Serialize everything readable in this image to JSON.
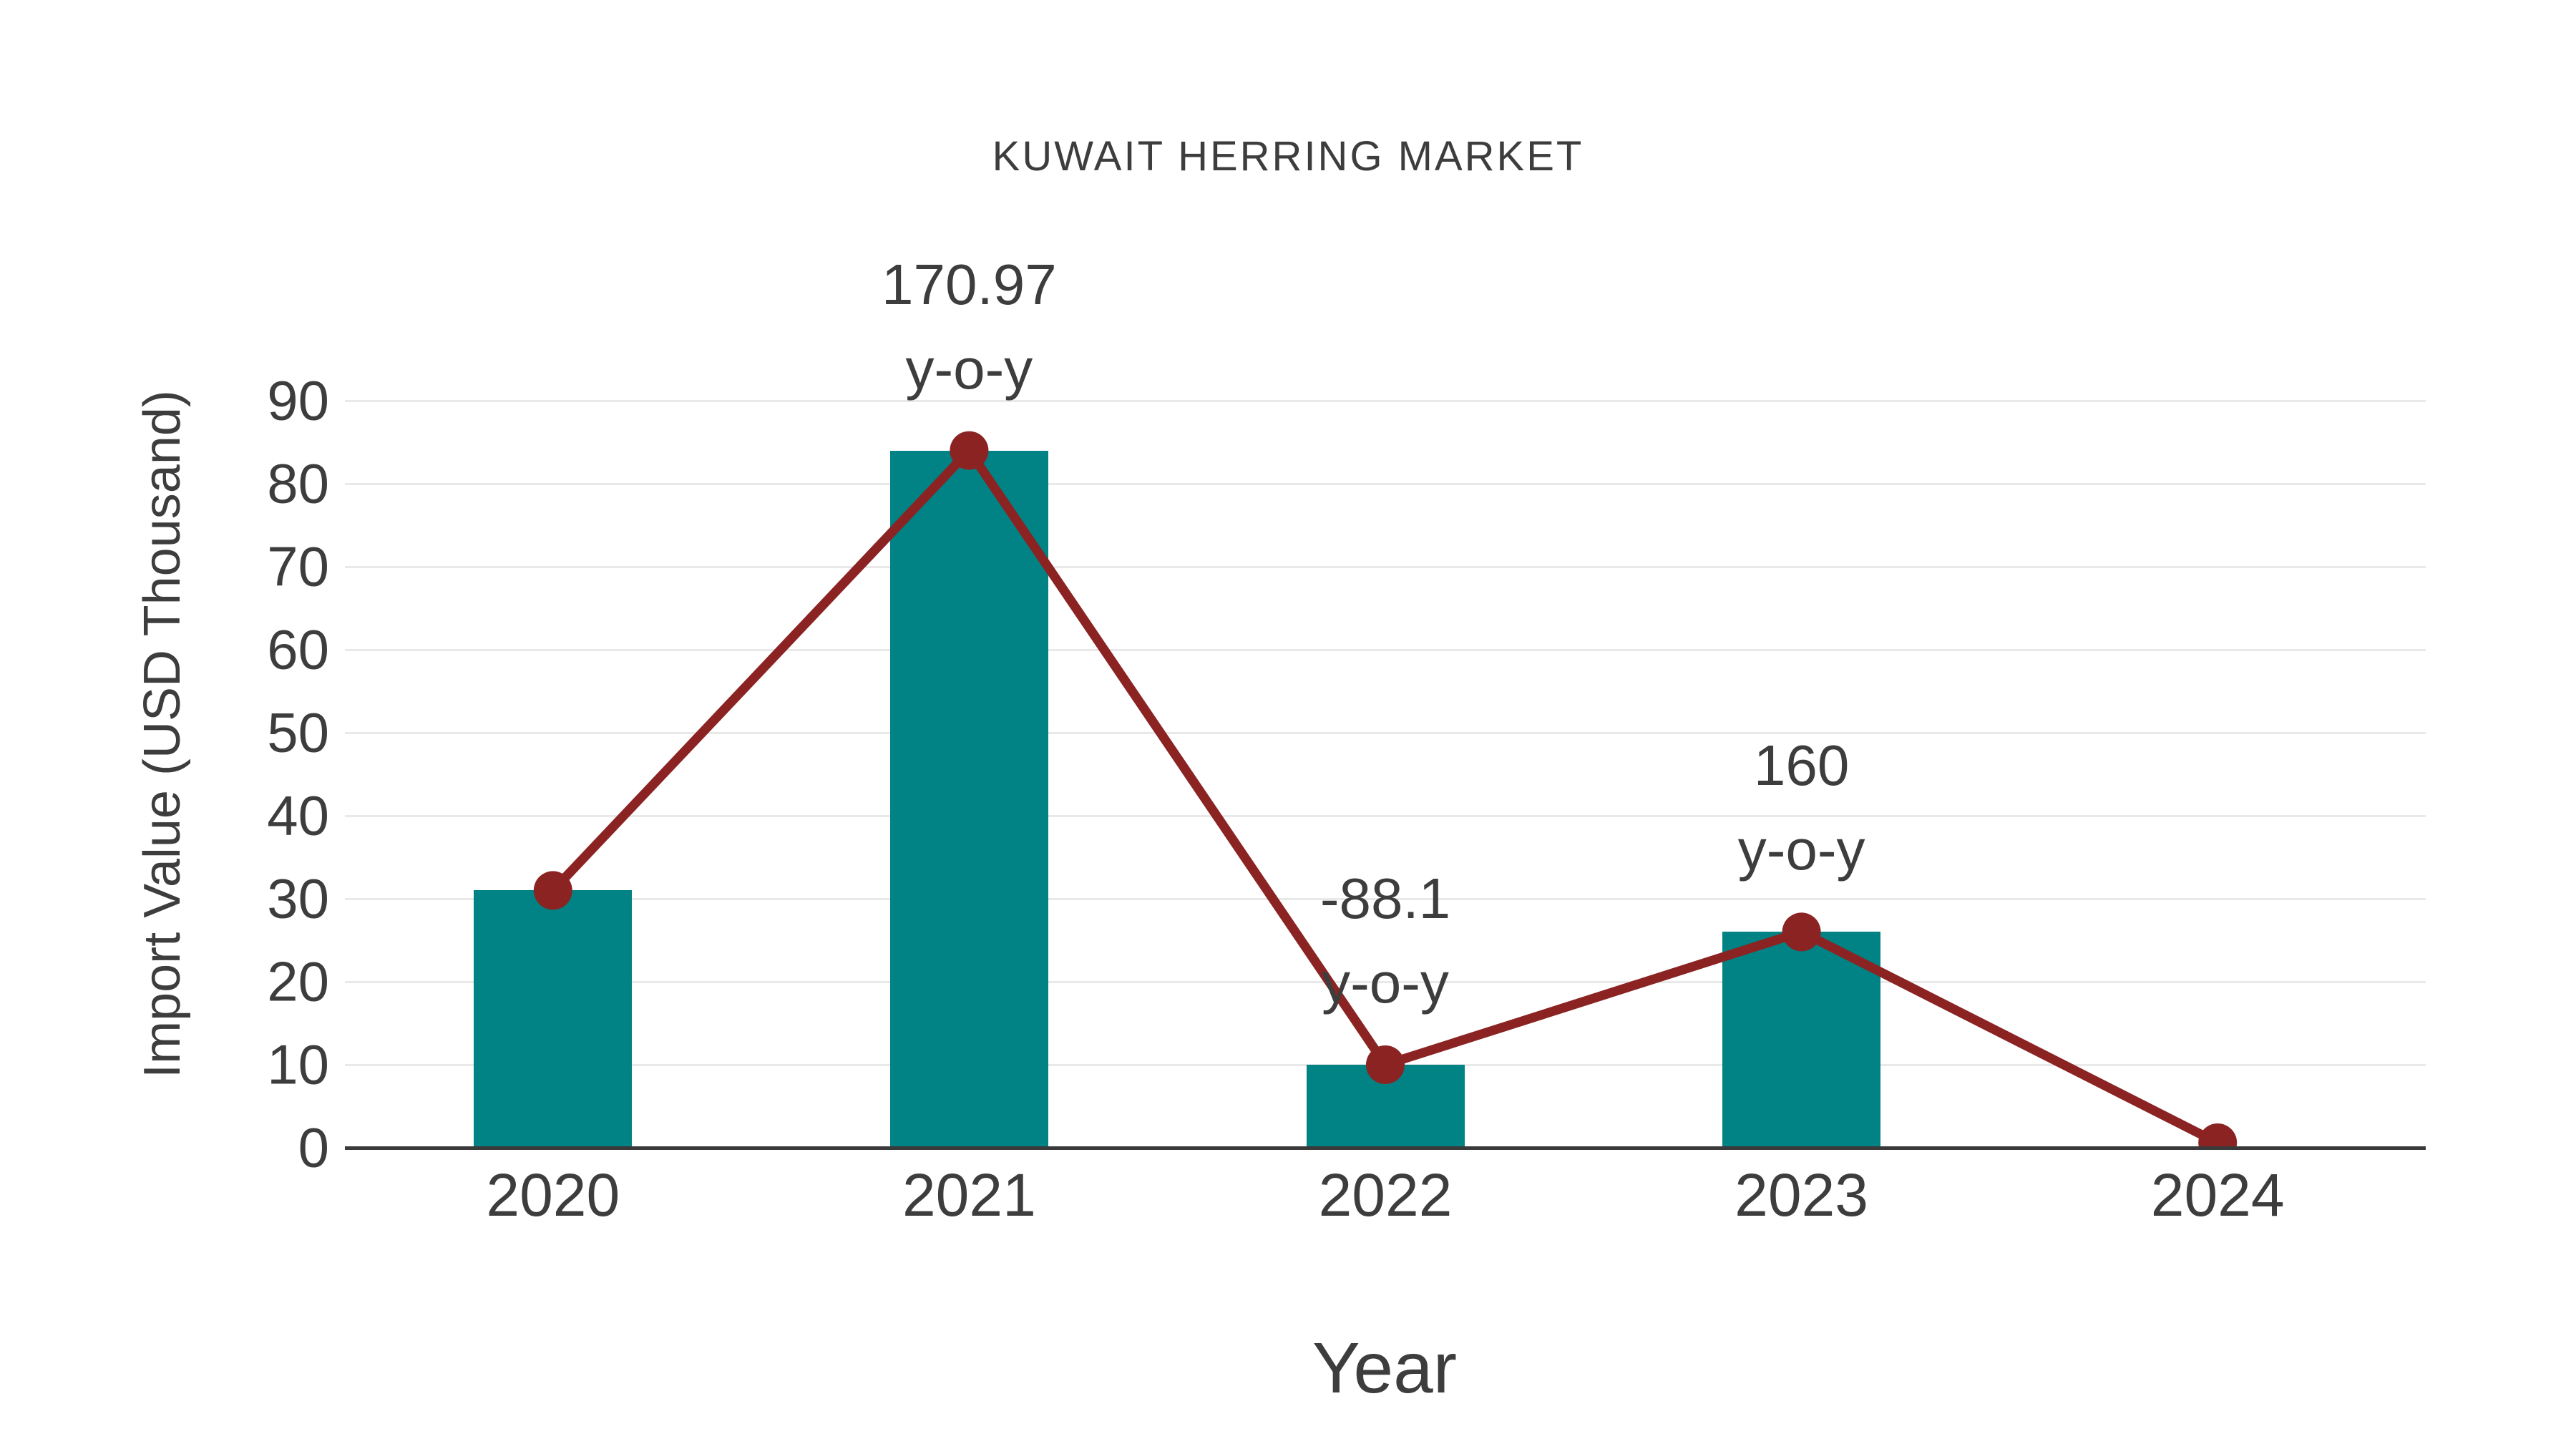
{
  "chart_data": {
    "type": "bar",
    "title": "KUWAIT HERRING MARKET",
    "xlabel": "Year",
    "ylabel": "Import Value (USD Thousand)",
    "categories": [
      "2020",
      "2021",
      "2022",
      "2023",
      "2024"
    ],
    "series": [
      {
        "name": "Import Value bars",
        "type": "bar",
        "values": [
          31,
          84,
          10,
          26,
          null
        ]
      },
      {
        "name": "Import Value line",
        "type": "line",
        "values": [
          31,
          84,
          10,
          26,
          0.6
        ]
      }
    ],
    "annotations": [
      {
        "category": "2021",
        "line1": "170.97",
        "line2": "y-o-y"
      },
      {
        "category": "2022",
        "line1": "-88.1",
        "line2": "y-o-y"
      },
      {
        "category": "2023",
        "line1": "160",
        "line2": "y-o-y"
      }
    ],
    "ylim": [
      0,
      90
    ],
    "ytick_step": 10,
    "yticks": [
      "0",
      "10",
      "20",
      "30",
      "40",
      "50",
      "60",
      "70",
      "80",
      "90"
    ],
    "grid": "horizontal",
    "legend": "none",
    "colors": {
      "bar": "#018284",
      "line": "#8b2323",
      "text": "#3d3d3d",
      "gridline": "#e9e9e9",
      "axis": "#3a3a3a"
    }
  }
}
